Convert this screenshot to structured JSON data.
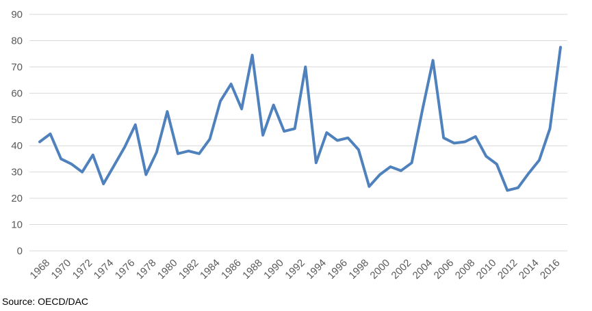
{
  "chart_data": {
    "type": "line",
    "title": "",
    "xlabel": "",
    "ylabel": "",
    "ylim": [
      0,
      90
    ],
    "y_ticks": [
      0,
      10,
      20,
      30,
      40,
      50,
      60,
      70,
      80,
      90
    ],
    "x_tick_labels": [
      "1968",
      "1970",
      "1972",
      "1974",
      "1976",
      "1978",
      "1980",
      "1982",
      "1984",
      "1986",
      "1988",
      "1990",
      "1992",
      "1994",
      "1996",
      "1998",
      "2000",
      "2002",
      "2004",
      "2006",
      "2008",
      "2010",
      "2012",
      "2014",
      "2016"
    ],
    "grid": "horizontal",
    "legend": "none",
    "series": [
      {
        "color": "#4f81bd",
        "x": [
          1968,
          1969,
          1970,
          1971,
          1972,
          1973,
          1974,
          1975,
          1976,
          1977,
          1978,
          1979,
          1980,
          1981,
          1982,
          1983,
          1984,
          1985,
          1986,
          1987,
          1988,
          1989,
          1990,
          1991,
          1992,
          1993,
          1994,
          1995,
          1996,
          1997,
          1998,
          1999,
          2000,
          2001,
          2002,
          2003,
          2004,
          2005,
          2006,
          2007,
          2008,
          2009,
          2010,
          2011,
          2012,
          2013,
          2014,
          2015,
          2016,
          2017
        ],
        "values": [
          41.5,
          44.5,
          35,
          33,
          30,
          36.5,
          25.5,
          32.5,
          39.5,
          48,
          29,
          37.5,
          53,
          37,
          38,
          37,
          42.5,
          57,
          63.5,
          54,
          74.5,
          44,
          55.5,
          45.5,
          46.5,
          70,
          33.5,
          45,
          42,
          43,
          38.5,
          24.5,
          29,
          32,
          30.5,
          33.5,
          53.5,
          72.5,
          43,
          41,
          41.5,
          43.5,
          36,
          33,
          23,
          24,
          29.5,
          34.5,
          46.5,
          77.5
        ]
      }
    ]
  },
  "source": "Source: OECD/DAC"
}
